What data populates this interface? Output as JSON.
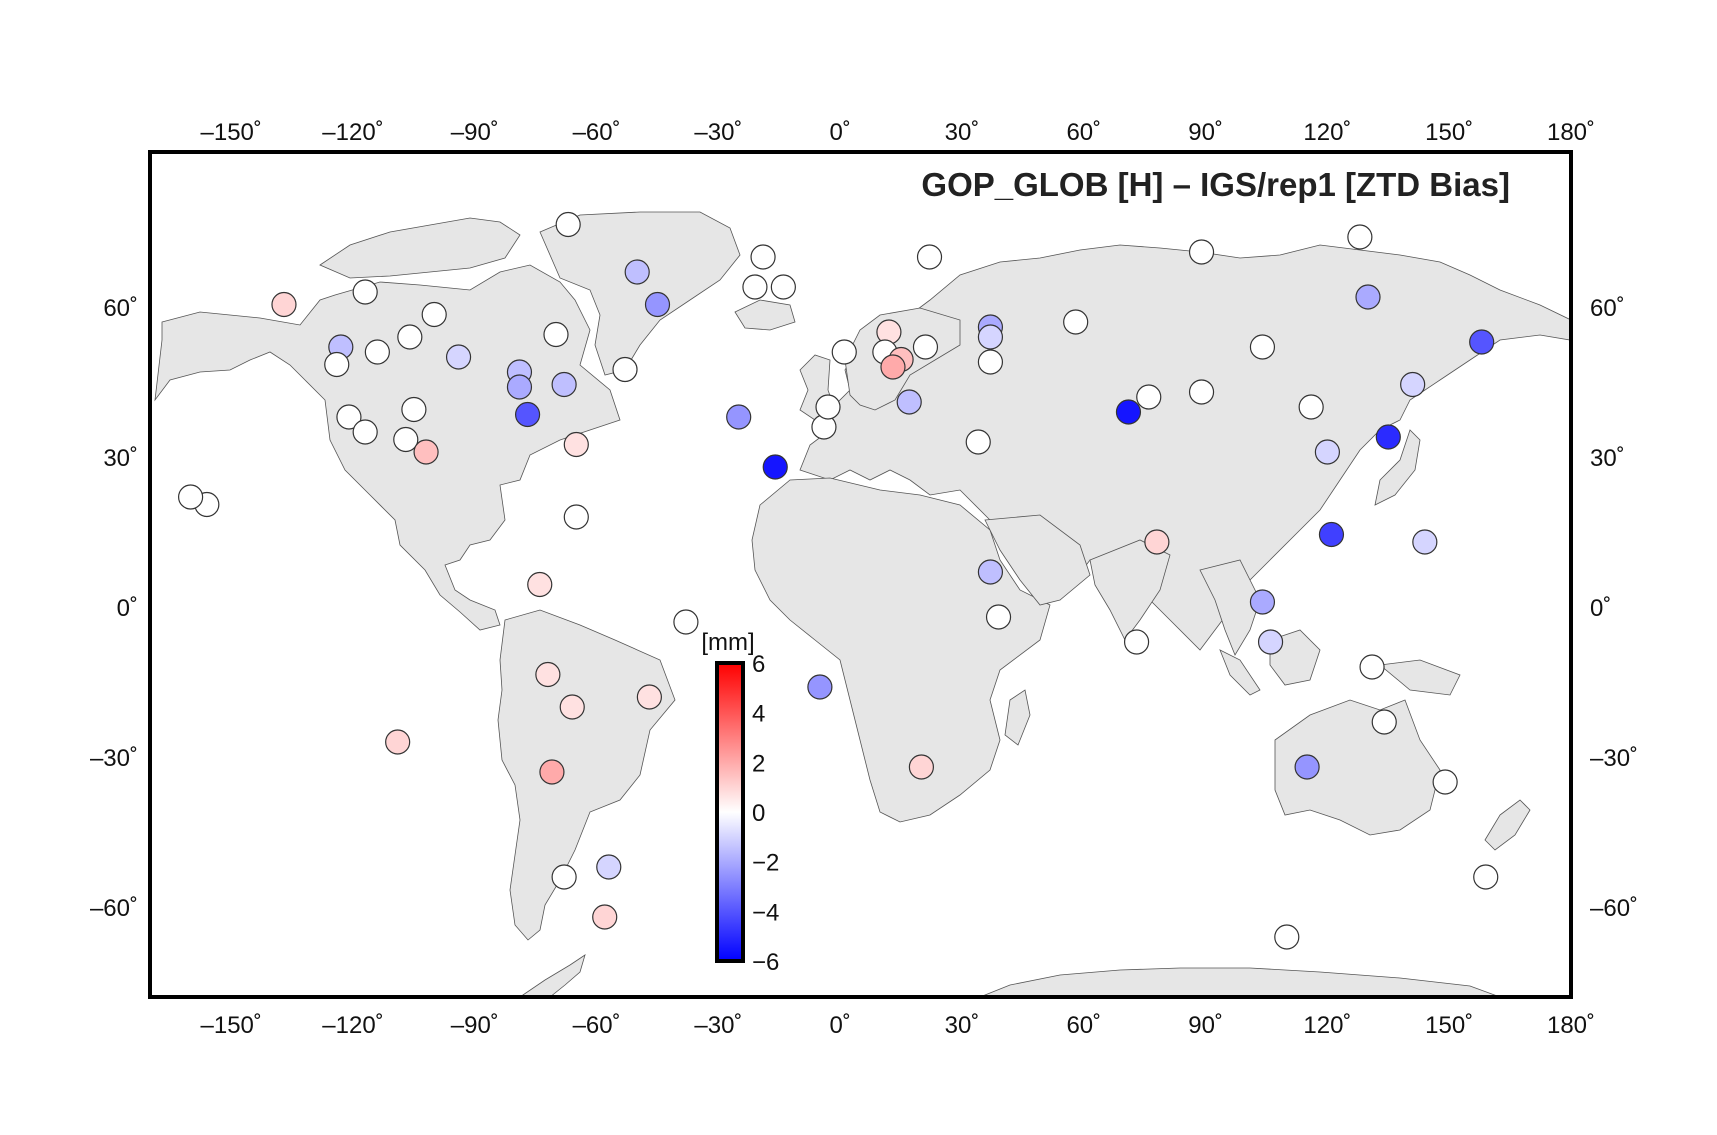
{
  "title": "GOP_GLOB [H] – IGS/rep1  [ZTD Bias]",
  "colorbar": {
    "unit": "[mm]",
    "min": -6,
    "max": 6,
    "ticks": [
      6,
      4,
      2,
      0,
      -2,
      -4,
      -6
    ],
    "tick_labels": [
      "6",
      "4",
      "2",
      "0",
      "−2",
      "−4",
      "−6"
    ],
    "colors": {
      "low": "#0000ff",
      "mid": "#ffffff",
      "high": "#ff0000"
    }
  },
  "map_data": {
    "projection": "equirectangular",
    "lon_range": [
      -170,
      180
    ],
    "lat_range": [
      -78,
      91
    ],
    "lon_ticks": [
      -150,
      -120,
      -90,
      -60,
      -30,
      0,
      30,
      60,
      90,
      120,
      150,
      180
    ],
    "lon_tick_labels": [
      "–150˚",
      "–120˚",
      "–90˚",
      "–60˚",
      "–30˚",
      "0˚",
      "30˚",
      "60˚",
      "90˚",
      "120˚",
      "150˚",
      "180˚"
    ],
    "lat_ticks": [
      60,
      30,
      0,
      -30,
      -60
    ],
    "lat_tick_labels": [
      "60˚",
      "30˚",
      "0˚",
      "–30˚",
      "–60˚"
    ],
    "land_color": "#e6e6e6",
    "stations": [
      {
        "lon": -67,
        "lat": 76.5,
        "bias": 0
      },
      {
        "lon": -50,
        "lat": 67,
        "bias": -1.5
      },
      {
        "lon": -45,
        "lat": 60.5,
        "bias": -2.5
      },
      {
        "lon": -19,
        "lat": 70,
        "bias": 0
      },
      {
        "lon": -21,
        "lat": 64,
        "bias": 0
      },
      {
        "lon": -14,
        "lat": 64,
        "bias": 0
      },
      {
        "lon": -137,
        "lat": 60.5,
        "bias": 1
      },
      {
        "lon": -123,
        "lat": 52,
        "bias": -1.5
      },
      {
        "lon": -117,
        "lat": 63,
        "bias": 0
      },
      {
        "lon": -114,
        "lat": 51,
        "bias": 0
      },
      {
        "lon": -124,
        "lat": 48.5,
        "bias": 0
      },
      {
        "lon": -100,
        "lat": 58.5,
        "bias": 0
      },
      {
        "lon": -106,
        "lat": 54,
        "bias": 0
      },
      {
        "lon": -94,
        "lat": 50,
        "bias": -1
      },
      {
        "lon": -70,
        "lat": 54.5,
        "bias": 0
      },
      {
        "lon": -79,
        "lat": 47,
        "bias": -1.5
      },
      {
        "lon": -79,
        "lat": 44,
        "bias": -2
      },
      {
        "lon": -68,
        "lat": 44.5,
        "bias": -1.5
      },
      {
        "lon": -53,
        "lat": 47.5,
        "bias": 0
      },
      {
        "lon": -77,
        "lat": 38.5,
        "bias": -4
      },
      {
        "lon": -121,
        "lat": 38,
        "bias": 0
      },
      {
        "lon": -117,
        "lat": 35,
        "bias": 0
      },
      {
        "lon": -105,
        "lat": 39.5,
        "bias": 0
      },
      {
        "lon": -107,
        "lat": 33.5,
        "bias": 0
      },
      {
        "lon": -102,
        "lat": 31,
        "bias": 1.5
      },
      {
        "lon": -65,
        "lat": 32.5,
        "bias": 0.7
      },
      {
        "lon": -156,
        "lat": 20.5,
        "bias": 0
      },
      {
        "lon": -160,
        "lat": 22,
        "bias": 0
      },
      {
        "lon": -65,
        "lat": 18,
        "bias": 0
      },
      {
        "lon": -74,
        "lat": 4.5,
        "bias": 0.7
      },
      {
        "lon": -38,
        "lat": -3,
        "bias": 0
      },
      {
        "lon": -72,
        "lat": -13.5,
        "bias": 0.7
      },
      {
        "lon": -109,
        "lat": -27,
        "bias": 1
      },
      {
        "lon": -66,
        "lat": -20,
        "bias": 0.7
      },
      {
        "lon": -47,
        "lat": -18,
        "bias": 0.7
      },
      {
        "lon": -71,
        "lat": -33,
        "bias": 2
      },
      {
        "lon": -68,
        "lat": -54,
        "bias": 0
      },
      {
        "lon": -57,
        "lat": -52,
        "bias": -1
      },
      {
        "lon": -58,
        "lat": -62,
        "bias": 1
      },
      {
        "lon": -25,
        "lat": 38,
        "bias": -2.5
      },
      {
        "lon": -16,
        "lat": 28,
        "bias": -5.5
      },
      {
        "lon": -5,
        "lat": -16,
        "bias": -2.5
      },
      {
        "lon": -4,
        "lat": 36,
        "bias": 0
      },
      {
        "lon": -3,
        "lat": 40,
        "bias": 0
      },
      {
        "lon": 1,
        "lat": 51,
        "bias": 0
      },
      {
        "lon": 12,
        "lat": 55,
        "bias": 0.7
      },
      {
        "lon": 11,
        "lat": 51,
        "bias": 0
      },
      {
        "lon": 15,
        "lat": 49.5,
        "bias": 1.5
      },
      {
        "lon": 13,
        "lat": 48,
        "bias": 2
      },
      {
        "lon": 21,
        "lat": 52,
        "bias": 0
      },
      {
        "lon": 22,
        "lat": 70,
        "bias": 0
      },
      {
        "lon": 17,
        "lat": 41,
        "bias": -1.5
      },
      {
        "lon": 34,
        "lat": 33,
        "bias": 0
      },
      {
        "lon": 37,
        "lat": 56,
        "bias": -2
      },
      {
        "lon": 37,
        "lat": 54,
        "bias": -1
      },
      {
        "lon": 37,
        "lat": 49,
        "bias": 0
      },
      {
        "lon": 58,
        "lat": 57,
        "bias": 0
      },
      {
        "lon": 37,
        "lat": 7,
        "bias": -1.5
      },
      {
        "lon": 39,
        "lat": -2,
        "bias": 0
      },
      {
        "lon": 20,
        "lat": -32,
        "bias": 1
      },
      {
        "lon": 71,
        "lat": 39,
        "bias": -5.5
      },
      {
        "lon": 76,
        "lat": 42,
        "bias": 0
      },
      {
        "lon": 89,
        "lat": 43,
        "bias": 0
      },
      {
        "lon": 89,
        "lat": 71,
        "bias": 0
      },
      {
        "lon": 104,
        "lat": 52,
        "bias": 0
      },
      {
        "lon": 78,
        "lat": 13,
        "bias": 1
      },
      {
        "lon": 73,
        "lat": -7,
        "bias": 0
      },
      {
        "lon": 104,
        "lat": 1,
        "bias": -2
      },
      {
        "lon": 106,
        "lat": -7,
        "bias": -1
      },
      {
        "lon": 121,
        "lat": 14.5,
        "bias": -4.5
      },
      {
        "lon": 116,
        "lat": 40,
        "bias": 0
      },
      {
        "lon": 120,
        "lat": 31,
        "bias": -1
      },
      {
        "lon": 130,
        "lat": 62,
        "bias": -2
      },
      {
        "lon": 128,
        "lat": 74,
        "bias": 0
      },
      {
        "lon": 135,
        "lat": 34,
        "bias": -5
      },
      {
        "lon": 141,
        "lat": 44.5,
        "bias": -1
      },
      {
        "lon": 158,
        "lat": 53,
        "bias": -4
      },
      {
        "lon": 144,
        "lat": 13,
        "bias": -1
      },
      {
        "lon": 131,
        "lat": -12,
        "bias": 0
      },
      {
        "lon": 134,
        "lat": -23,
        "bias": 0
      },
      {
        "lon": 115,
        "lat": -32,
        "bias": -2.5
      },
      {
        "lon": 149,
        "lat": -35,
        "bias": 0
      },
      {
        "lon": 159,
        "lat": -54,
        "bias": 0
      },
      {
        "lon": 110,
        "lat": -66,
        "bias": 0
      }
    ]
  }
}
